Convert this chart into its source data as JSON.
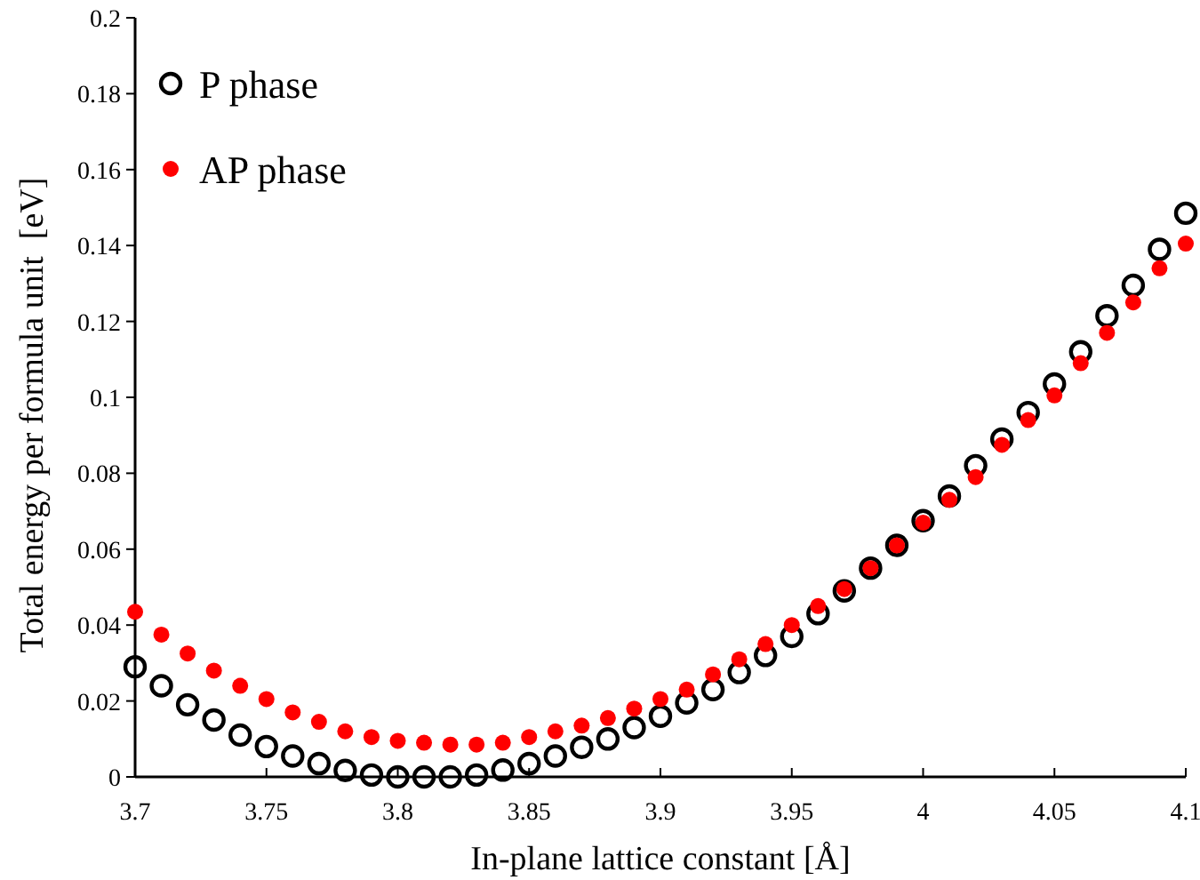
{
  "chart_data": {
    "type": "scatter",
    "xlabel": "In-plane lattice constant [Å]",
    "ylabel": "Total energy per formula unit  [eV]",
    "x": [
      3.7,
      3.71,
      3.72,
      3.73,
      3.74,
      3.75,
      3.76,
      3.77,
      3.78,
      3.79,
      3.8,
      3.81,
      3.82,
      3.83,
      3.84,
      3.85,
      3.86,
      3.87,
      3.88,
      3.89,
      3.9,
      3.91,
      3.92,
      3.93,
      3.94,
      3.95,
      3.96,
      3.97,
      3.98,
      3.99,
      4.0,
      4.01,
      4.02,
      4.03,
      4.04,
      4.05,
      4.06,
      4.07,
      4.08,
      4.09,
      4.1
    ],
    "series": [
      {
        "name": "P phase",
        "color": "#000000",
        "values": [
          0.029,
          0.024,
          0.019,
          0.015,
          0.011,
          0.008,
          0.0055,
          0.0035,
          0.0017,
          0.0005,
          0,
          0,
          0,
          0.0005,
          0.0018,
          0.0035,
          0.0055,
          0.0078,
          0.01,
          0.013,
          0.016,
          0.0195,
          0.023,
          0.0275,
          0.032,
          0.037,
          0.043,
          0.049,
          0.055,
          0.061,
          0.0675,
          0.074,
          0.082,
          0.089,
          0.096,
          0.1035,
          0.112,
          0.1215,
          0.1295,
          0.139,
          0.1485
        ]
      },
      {
        "name": "AP phase",
        "color": "#ff0000",
        "values": [
          0.0435,
          0.0375,
          0.0325,
          0.028,
          0.024,
          0.0205,
          0.017,
          0.0145,
          0.012,
          0.0105,
          0.0095,
          0.009,
          0.0085,
          0.0085,
          0.009,
          0.0105,
          0.012,
          0.0135,
          0.0155,
          0.018,
          0.0205,
          0.023,
          0.027,
          0.031,
          0.035,
          0.04,
          0.045,
          0.0495,
          0.055,
          0.061,
          0.067,
          0.073,
          0.079,
          0.0875,
          0.094,
          0.1005,
          0.109,
          0.117,
          0.125,
          0.134,
          0.1405
        ]
      }
    ],
    "xlim": [
      3.7,
      4.1
    ],
    "xticks": [
      3.7,
      3.75,
      3.8,
      3.85,
      3.9,
      3.95,
      4,
      4.05,
      4.1
    ],
    "ylim": [
      0,
      0.2
    ],
    "yticks": [
      0,
      0.02,
      0.04,
      0.06,
      0.08,
      0.1,
      0.12,
      0.14,
      0.16,
      0.18,
      0.2
    ],
    "marker": "circle",
    "grid": false,
    "legend": "top left"
  }
}
